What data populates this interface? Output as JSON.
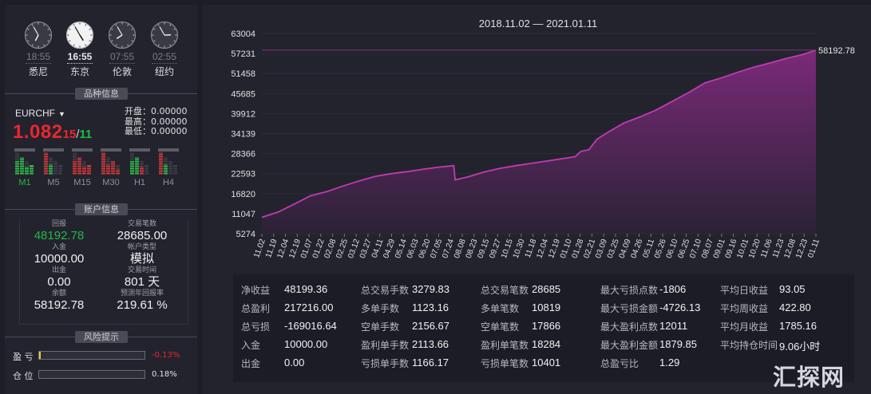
{
  "clocks": [
    {
      "time": "18:55",
      "city": "悉尼",
      "hour": 6,
      "minute": 55
    },
    {
      "time": "16:55",
      "city": "东京",
      "hour": 4,
      "minute": 55
    },
    {
      "time": "07:55",
      "city": "伦敦",
      "hour": 7,
      "minute": 55
    },
    {
      "time": "02:55",
      "city": "纽约",
      "hour": 2,
      "minute": 55
    }
  ],
  "sections": {
    "symbol_info": "品种信息",
    "account_info": "账户信息",
    "risk_info": "风险提示"
  },
  "symbol": {
    "name": "EURCHF",
    "arrow": "▼",
    "price_main": "1.082",
    "price_digits": "15",
    "slash": "/",
    "price_digits2": "11",
    "open_label": "开盘：",
    "open_value": "0.00000",
    "high_label": "最高：",
    "high_value": "0.00000",
    "low_label": "最低：",
    "low_value": "0.00000",
    "timeframes": [
      "M1",
      "M5",
      "M15",
      "M30",
      "H1",
      "H4"
    ]
  },
  "account": {
    "profit_label": "回报",
    "profit_value": "48192.78",
    "lots_label": "交易笔数",
    "lots_value": "28685.00",
    "deposit_label": "入金",
    "deposit_value": "10000.00",
    "type_label": "帐户类型",
    "type_value": "模拟",
    "withdraw_label": "出金",
    "withdraw_value": "0.00",
    "time_label": "交易时间",
    "time_value": "801 天",
    "balance_label": "余额",
    "balance_value": "58192.78",
    "annual_label": "预测年回报率",
    "annual_value": "219.61 %"
  },
  "risk": {
    "pl_label": "盈 亏",
    "pl_value": "-0.13%",
    "pl_level": 0.0013,
    "pos_label": "仓 位",
    "pos_value": "0.18%",
    "pos_level": 0.0018
  },
  "colors": {
    "line": "#c03cb0",
    "fill_top": "#7a2a78",
    "fill_bottom": "#2b2236",
    "price_red": "#e8272f",
    "green": "#22b844"
  },
  "chart_data": {
    "type": "area",
    "title": "2018.11.02 — 2021.01.11",
    "last_label": "58192.78",
    "y_ticks": [
      "63004",
      "57231",
      "51458",
      "45685",
      "39912",
      "34139",
      "28366",
      "22593",
      "16820",
      "11047",
      "5274"
    ],
    "ylim": [
      5274,
      63004
    ],
    "x_ticks": [
      "11.02",
      "11.19",
      "12.04",
      "12.19",
      "01.07",
      "01.22",
      "02.08",
      "02.25",
      "03.12",
      "03.27",
      "04.11",
      "04.29",
      "05.14",
      "06.03",
      "06.20",
      "07.05",
      "07.24",
      "08.08",
      "08.23",
      "09.15",
      "09.27",
      "10.15",
      "10.30",
      "11.18",
      "12.04",
      "12.19",
      "01.10",
      "01.28",
      "02.21",
      "03.09",
      "03.25",
      "04.09",
      "04.26",
      "05.11",
      "05.26",
      "06.10",
      "06.25",
      "07.10",
      "08.07",
      "09.01",
      "09.16",
      "10.01",
      "10.20",
      "11.06",
      "11.23",
      "12.08",
      "12.23",
      "01.11"
    ],
    "points": [
      [
        0,
        10000
      ],
      [
        6,
        11500
      ],
      [
        12,
        13800
      ],
      [
        18,
        16200
      ],
      [
        24,
        17400
      ],
      [
        30,
        19000
      ],
      [
        36,
        20500
      ],
      [
        42,
        21800
      ],
      [
        48,
        22600
      ],
      [
        54,
        23200
      ],
      [
        60,
        23900
      ],
      [
        66,
        24500
      ],
      [
        71,
        24900
      ],
      [
        71.5,
        20800
      ],
      [
        76,
        21600
      ],
      [
        82,
        23000
      ],
      [
        88,
        24100
      ],
      [
        94,
        24900
      ],
      [
        100,
        25600
      ],
      [
        106,
        26300
      ],
      [
        112,
        27000
      ],
      [
        116,
        27500
      ],
      [
        118,
        29000
      ],
      [
        121,
        29500
      ],
      [
        124,
        32500
      ],
      [
        128,
        34500
      ],
      [
        134,
        37200
      ],
      [
        140,
        39000
      ],
      [
        146,
        41000
      ],
      [
        152,
        43500
      ],
      [
        158,
        46000
      ],
      [
        164,
        48800
      ],
      [
        170,
        50200
      ],
      [
        176,
        51800
      ],
      [
        182,
        53300
      ],
      [
        188,
        54500
      ],
      [
        194,
        55800
      ],
      [
        200,
        56900
      ],
      [
        205,
        58192.78
      ]
    ],
    "xlim": [
      0,
      205
    ]
  },
  "stats": {
    "rows": [
      [
        [
          "净收益",
          "48199.36"
        ],
        [
          "总交易手数",
          "3279.83"
        ],
        [
          "总交易笔数",
          "28685"
        ],
        [
          "最大亏损点数",
          "-1806"
        ],
        [
          "平均日收益",
          "93.05"
        ]
      ],
      [
        [
          "总盈利",
          "217216.00"
        ],
        [
          "多单手数",
          "1123.16"
        ],
        [
          "多单笔数",
          "10819"
        ],
        [
          "最大亏损金额",
          "-4726.13"
        ],
        [
          "平均周收益",
          "422.80"
        ]
      ],
      [
        [
          "总亏损",
          "-169016.64"
        ],
        [
          "空单手数",
          "2156.67"
        ],
        [
          "空单笔数",
          "17866"
        ],
        [
          "最大盈利点数",
          "12011"
        ],
        [
          "平均月收益",
          "1785.16"
        ]
      ],
      [
        [
          "入金",
          "10000.00"
        ],
        [
          "盈利单手数",
          "2113.66"
        ],
        [
          "盈利单笔数",
          "18284"
        ],
        [
          "最大盈利金额",
          "1879.85"
        ],
        [
          "平均持仓时间",
          "9.06小时"
        ]
      ],
      [
        [
          "出金",
          "0.00"
        ],
        [
          "亏损单手数",
          "1166.17"
        ],
        [
          "亏损单笔数",
          "10401"
        ],
        [
          "总盈亏比",
          "1.29"
        ]
      ]
    ]
  },
  "watermark": "汇探网"
}
